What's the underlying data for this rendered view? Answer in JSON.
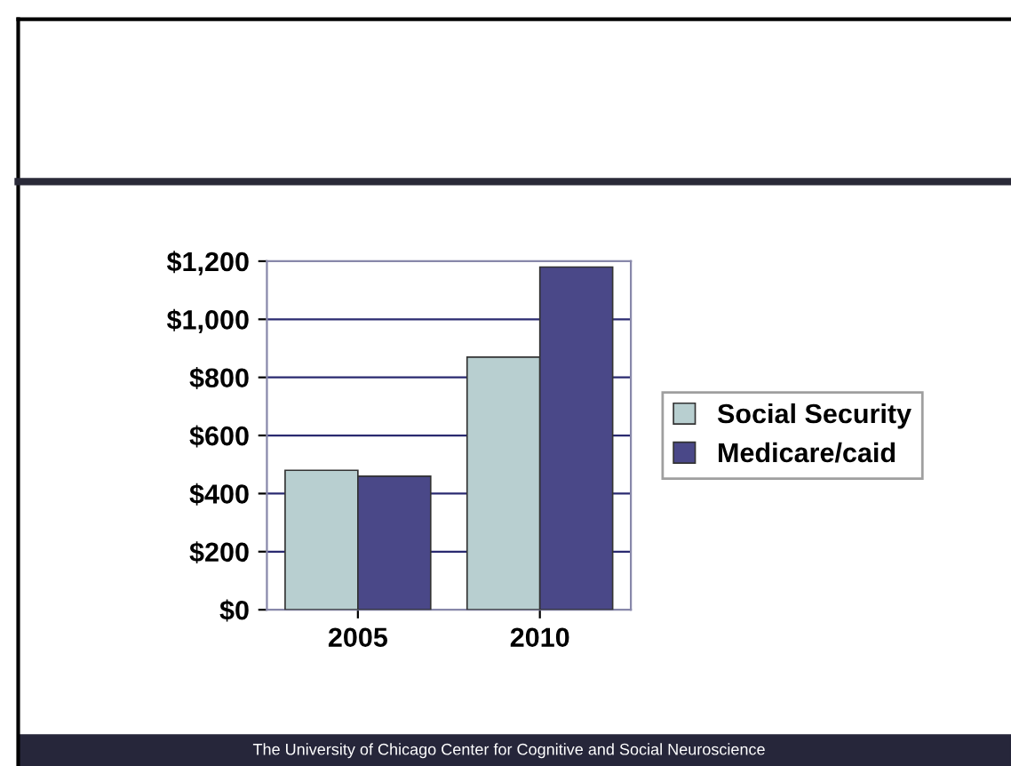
{
  "chart_data": {
    "type": "bar",
    "categories": [
      "2005",
      "2010"
    ],
    "series": [
      {
        "name": "Social Security",
        "color": "#b8cfd0",
        "values": [
          480,
          870
        ]
      },
      {
        "name": "Medicare/caid",
        "color": "#4a4888",
        "values": [
          460,
          1180
        ]
      }
    ],
    "ylim": [
      0,
      1200
    ],
    "yticks": [
      {
        "value": 0,
        "label": "$0"
      },
      {
        "value": 200,
        "label": "$200"
      },
      {
        "value": 400,
        "label": "$400"
      },
      {
        "value": 600,
        "label": "$600"
      },
      {
        "value": 800,
        "label": "$800"
      },
      {
        "value": 1000,
        "label": "$1,000"
      },
      {
        "value": 1200,
        "label": "$1,200"
      }
    ],
    "grid": "y",
    "legend": "right",
    "annotations": [
      "The University of Chicago Center for Cognitive and Social Neuroscience"
    ]
  }
}
